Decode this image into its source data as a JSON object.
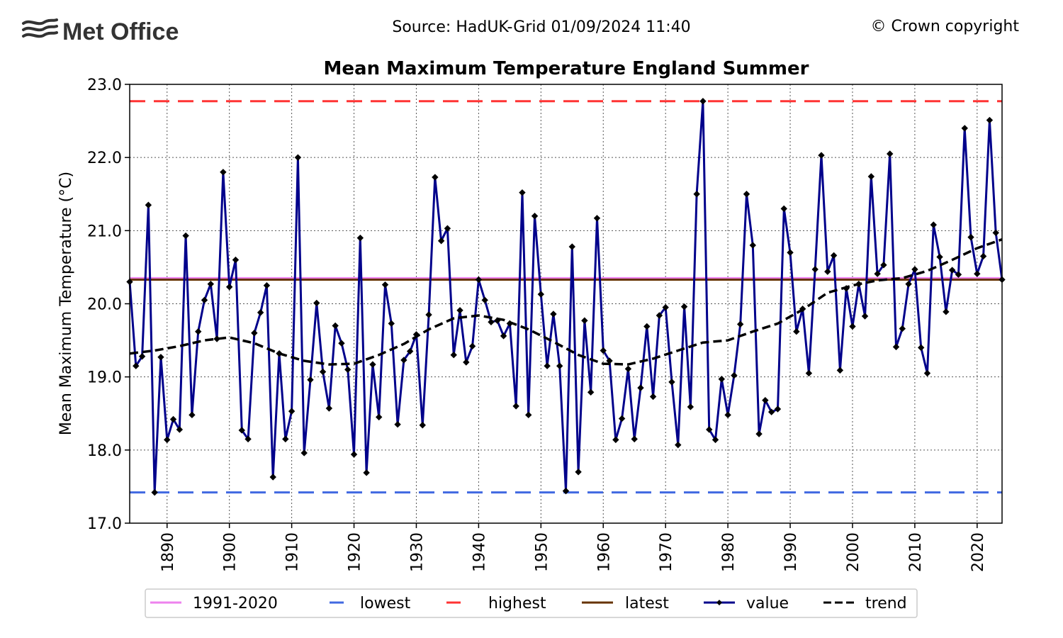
{
  "header": {
    "logo_text": "Met Office",
    "source": "Source: HadUK-Grid 01/09/2024 11:40",
    "copyright": "© Crown copyright"
  },
  "colors": {
    "value": "#00008b",
    "trend": "#000000",
    "avg": "#ee82ee",
    "lowest": "#4169e1",
    "highest": "#ff3333",
    "latest": "#663300",
    "grid": "#555555"
  },
  "chart_data": {
    "type": "line",
    "title": "Mean Maximum Temperature England Summer",
    "xlabel": "",
    "ylabel": "Mean Maximum Temperature (°C)",
    "xlim": [
      1884,
      2024
    ],
    "ylim": [
      17.0,
      23.0
    ],
    "xticks": [
      1890,
      1900,
      1910,
      1920,
      1930,
      1940,
      1950,
      1960,
      1970,
      1980,
      1990,
      2000,
      2010,
      2020
    ],
    "yticks": [
      "17.0",
      "18.0",
      "19.0",
      "20.0",
      "21.0",
      "22.0",
      "23.0"
    ],
    "grid": true,
    "legend": {
      "position": "bottom",
      "entries": [
        {
          "key": "avg",
          "label": "1991-2020"
        },
        {
          "key": "lowest",
          "label": "lowest"
        },
        {
          "key": "highest",
          "label": "highest"
        },
        {
          "key": "latest",
          "label": "latest"
        },
        {
          "key": "value",
          "label": "value"
        },
        {
          "key": "trend",
          "label": "trend"
        }
      ]
    },
    "reference_lines": {
      "avg": 20.35,
      "lowest": 17.42,
      "highest": 22.77,
      "latest": 20.33
    },
    "series": [
      {
        "name": "value",
        "x": [
          1884,
          1885,
          1886,
          1887,
          1888,
          1889,
          1890,
          1891,
          1892,
          1893,
          1894,
          1895,
          1896,
          1897,
          1898,
          1899,
          1900,
          1901,
          1902,
          1903,
          1904,
          1905,
          1906,
          1907,
          1908,
          1909,
          1910,
          1911,
          1912,
          1913,
          1914,
          1915,
          1916,
          1917,
          1918,
          1919,
          1920,
          1921,
          1922,
          1923,
          1924,
          1925,
          1926,
          1927,
          1928,
          1929,
          1930,
          1931,
          1932,
          1933,
          1934,
          1935,
          1936,
          1937,
          1938,
          1939,
          1940,
          1941,
          1942,
          1943,
          1944,
          1945,
          1946,
          1947,
          1948,
          1949,
          1950,
          1951,
          1952,
          1953,
          1954,
          1955,
          1956,
          1957,
          1958,
          1959,
          1960,
          1961,
          1962,
          1963,
          1964,
          1965,
          1966,
          1967,
          1968,
          1969,
          1970,
          1971,
          1972,
          1973,
          1974,
          1975,
          1976,
          1977,
          1978,
          1979,
          1980,
          1981,
          1982,
          1983,
          1984,
          1985,
          1986,
          1987,
          1988,
          1989,
          1990,
          1991,
          1992,
          1993,
          1994,
          1995,
          1996,
          1997,
          1998,
          1999,
          2000,
          2001,
          2002,
          2003,
          2004,
          2005,
          2006,
          2007,
          2008,
          2009,
          2010,
          2011,
          2012,
          2013,
          2014,
          2015,
          2016,
          2017,
          2018,
          2019,
          2020,
          2021,
          2022,
          2023,
          2024
        ],
        "values": [
          20.3,
          19.15,
          19.28,
          21.35,
          17.42,
          19.27,
          18.14,
          18.42,
          18.28,
          20.93,
          18.48,
          19.62,
          20.05,
          20.27,
          19.52,
          21.8,
          20.23,
          20.6,
          18.27,
          18.15,
          19.6,
          19.88,
          20.25,
          17.63,
          19.32,
          18.15,
          18.53,
          22.0,
          17.96,
          18.96,
          20.01,
          19.07,
          18.57,
          19.7,
          19.46,
          19.1,
          17.94,
          20.9,
          17.69,
          19.17,
          18.45,
          20.26,
          19.73,
          18.35,
          19.23,
          19.35,
          19.58,
          18.34,
          19.85,
          21.73,
          20.86,
          21.03,
          19.3,
          19.91,
          19.2,
          19.42,
          20.33,
          20.05,
          19.75,
          19.77,
          19.56,
          19.73,
          18.6,
          21.52,
          18.48,
          21.2,
          20.13,
          19.15,
          19.86,
          19.15,
          17.44,
          20.78,
          17.7,
          19.77,
          18.79,
          21.17,
          19.36,
          19.22,
          18.14,
          18.43,
          19.11,
          18.15,
          18.85,
          19.69,
          18.73,
          19.84,
          19.95,
          18.93,
          18.07,
          19.96,
          18.59,
          21.5,
          22.77,
          18.28,
          18.14,
          18.97,
          18.48,
          19.02,
          19.72,
          21.5,
          20.8,
          18.22,
          18.68,
          18.52,
          18.56,
          21.3,
          20.7,
          19.62,
          19.93,
          19.05,
          20.47,
          22.03,
          20.44,
          20.66,
          19.09,
          20.21,
          19.69,
          20.27,
          19.83,
          21.74,
          20.41,
          20.53,
          22.05,
          19.41,
          19.66,
          20.27,
          20.47,
          19.4,
          19.05,
          21.08,
          20.64,
          19.89,
          20.46,
          20.4,
          22.4,
          20.91,
          20.41,
          20.65,
          22.51,
          20.97,
          20.33
        ]
      },
      {
        "name": "trend",
        "x": [
          1884,
          1888,
          1892,
          1896,
          1900,
          1904,
          1908,
          1912,
          1916,
          1920,
          1924,
          1928,
          1932,
          1936,
          1940,
          1944,
          1948,
          1952,
          1956,
          1960,
          1964,
          1968,
          1972,
          1976,
          1980,
          1984,
          1988,
          1992,
          1996,
          2000,
          2004,
          2008,
          2012,
          2016,
          2020,
          2024
        ],
        "values": [
          19.32,
          19.36,
          19.42,
          19.5,
          19.54,
          19.46,
          19.32,
          19.22,
          19.17,
          19.18,
          19.3,
          19.45,
          19.65,
          19.8,
          19.84,
          19.78,
          19.65,
          19.48,
          19.3,
          19.18,
          19.17,
          19.25,
          19.36,
          19.47,
          19.5,
          19.62,
          19.73,
          19.92,
          20.15,
          20.25,
          20.32,
          20.35,
          20.45,
          20.6,
          20.76,
          20.88
        ]
      }
    ]
  }
}
